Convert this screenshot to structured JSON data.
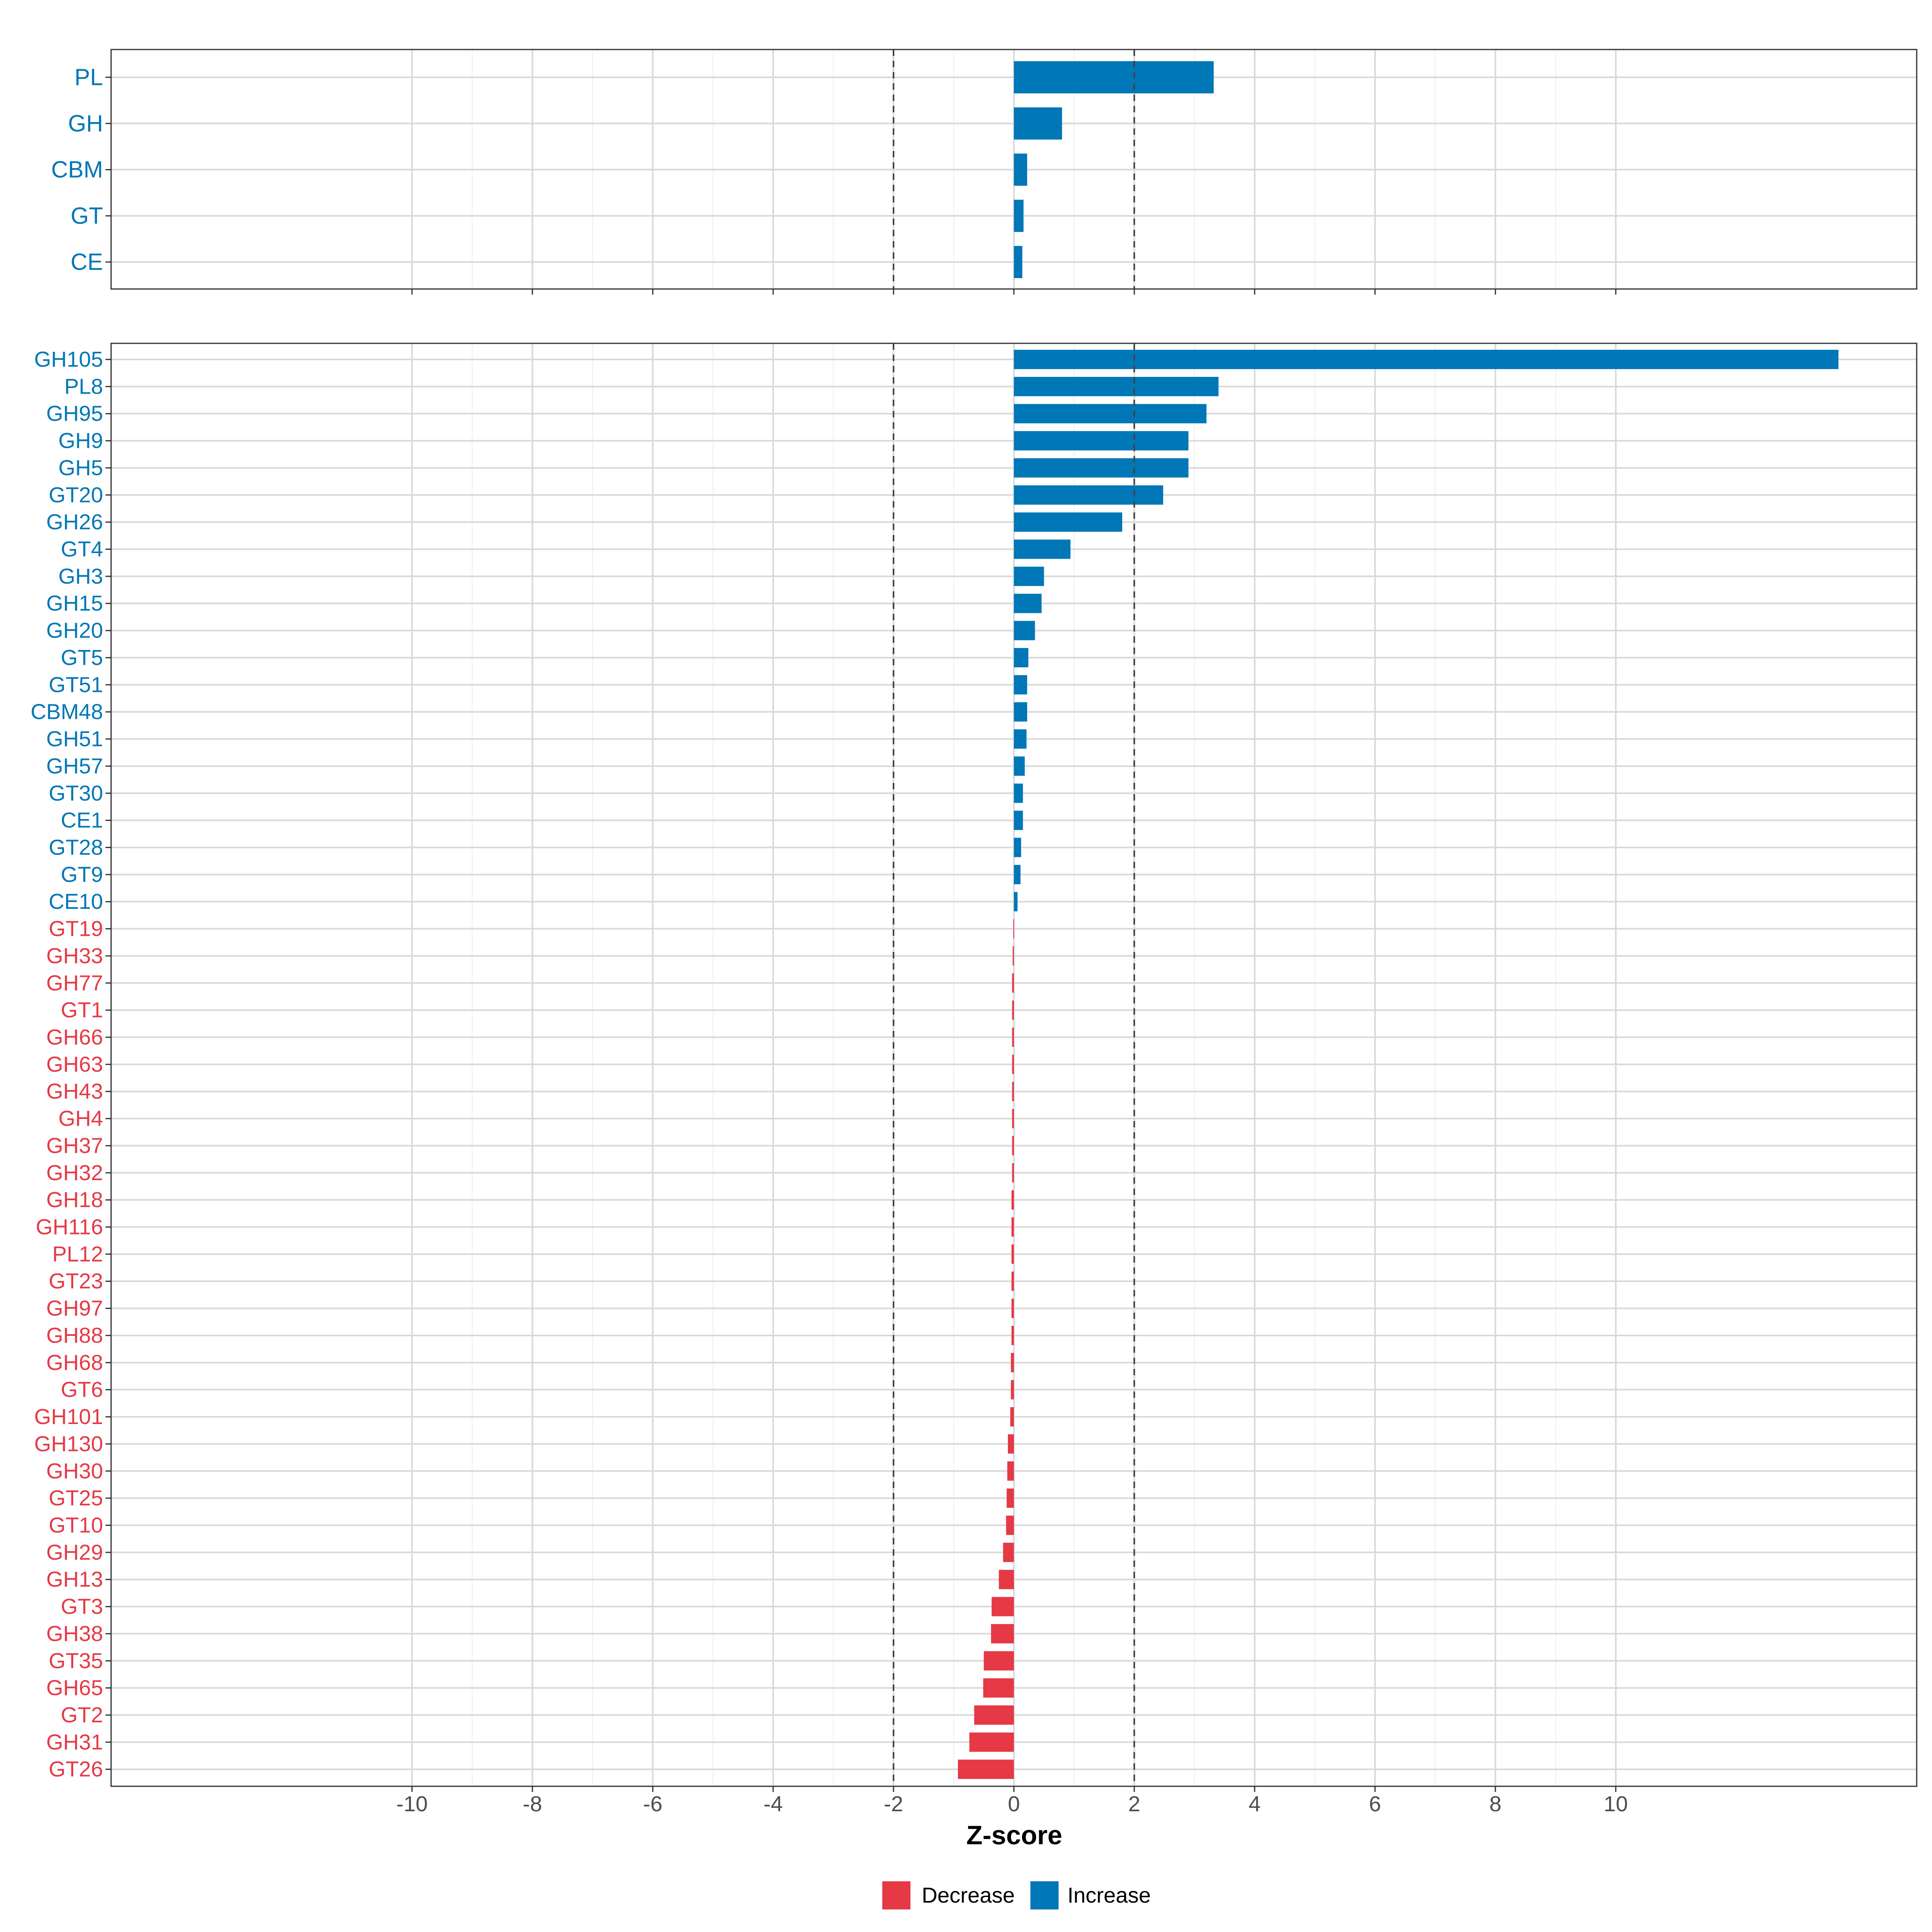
{
  "chart_data": {
    "type": "bar",
    "orientation": "horizontal",
    "xlabel": "Z-score",
    "xlim": [
      -15,
      15
    ],
    "x_ticks": [
      -10,
      -8,
      -6,
      -4,
      -2,
      0,
      2,
      4,
      6,
      8,
      10
    ],
    "x_tick_labels": [
      "-10",
      "-8",
      "-6",
      "-4",
      "-2",
      "0",
      "2",
      "4",
      "6",
      "8",
      "10"
    ],
    "reference_lines": [
      -2,
      2
    ],
    "grid": true,
    "legend": {
      "placement": "bottom",
      "entries": [
        {
          "label": "Decrease",
          "color": "#E63946"
        },
        {
          "label": "Increase",
          "color": "#0077B6"
        }
      ]
    },
    "panels": [
      {
        "name": "class",
        "categories": [
          "PL",
          "GH",
          "CBM",
          "GT",
          "CE"
        ],
        "values": [
          3.32,
          0.8,
          0.22,
          0.16,
          0.14
        ],
        "direction": [
          "Increase",
          "Increase",
          "Increase",
          "Increase",
          "Increase"
        ]
      },
      {
        "name": "family",
        "categories": [
          "GH105",
          "PL8",
          "GH95",
          "GH9",
          "GH5",
          "GT20",
          "GH26",
          "GT4",
          "GH3",
          "GH15",
          "GH20",
          "GT5",
          "GT51",
          "CBM48",
          "GH51",
          "GH57",
          "GT30",
          "CE1",
          "GT28",
          "GT9",
          "CE10",
          "GT19",
          "GH33",
          "GH77",
          "GT1",
          "GH66",
          "GH63",
          "GH43",
          "GH4",
          "GH37",
          "GH32",
          "GH18",
          "GH116",
          "PL12",
          "GT23",
          "GH97",
          "GH88",
          "GH68",
          "GT6",
          "GH101",
          "GH130",
          "GH30",
          "GT25",
          "GT10",
          "GH29",
          "GH13",
          "GT3",
          "GH38",
          "GT35",
          "GH65",
          "GT2",
          "GH31",
          "GT26"
        ],
        "values": [
          13.7,
          3.4,
          3.2,
          2.9,
          2.9,
          2.48,
          1.8,
          0.94,
          0.5,
          0.46,
          0.35,
          0.24,
          0.22,
          0.22,
          0.21,
          0.18,
          0.15,
          0.15,
          0.12,
          0.11,
          0.06,
          -0.01,
          -0.02,
          -0.03,
          -0.03,
          -0.03,
          -0.03,
          -0.03,
          -0.03,
          -0.03,
          -0.03,
          -0.04,
          -0.04,
          -0.04,
          -0.04,
          -0.04,
          -0.04,
          -0.05,
          -0.05,
          -0.06,
          -0.1,
          -0.11,
          -0.12,
          -0.13,
          -0.18,
          -0.25,
          -0.37,
          -0.38,
          -0.5,
          -0.51,
          -0.66,
          -0.74,
          -0.93
        ],
        "direction": [
          "Increase",
          "Increase",
          "Increase",
          "Increase",
          "Increase",
          "Increase",
          "Increase",
          "Increase",
          "Increase",
          "Increase",
          "Increase",
          "Increase",
          "Increase",
          "Increase",
          "Increase",
          "Increase",
          "Increase",
          "Increase",
          "Increase",
          "Increase",
          "Increase",
          "Decrease",
          "Decrease",
          "Decrease",
          "Decrease",
          "Decrease",
          "Decrease",
          "Decrease",
          "Decrease",
          "Decrease",
          "Decrease",
          "Decrease",
          "Decrease",
          "Decrease",
          "Decrease",
          "Decrease",
          "Decrease",
          "Decrease",
          "Decrease",
          "Decrease",
          "Decrease",
          "Decrease",
          "Decrease",
          "Decrease",
          "Decrease",
          "Decrease",
          "Decrease",
          "Decrease",
          "Decrease",
          "Decrease",
          "Decrease",
          "Decrease",
          "Decrease"
        ]
      }
    ]
  }
}
